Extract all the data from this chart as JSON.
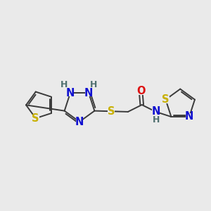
{
  "background_color": "#eaeaea",
  "atom_colors": {
    "C": "#3a3a3a",
    "N": "#1010d0",
    "S": "#c8b000",
    "O": "#dd1010",
    "H": "#507070"
  },
  "bond_color": "#3a3a3a",
  "bond_lw": 1.4,
  "font_size_atom": 10.5,
  "font_size_H": 9.0,
  "fig_w": 3.0,
  "fig_h": 3.0,
  "dpi": 100,
  "xlim": [
    0.0,
    9.0
  ],
  "ylim": [
    2.5,
    6.5
  ]
}
